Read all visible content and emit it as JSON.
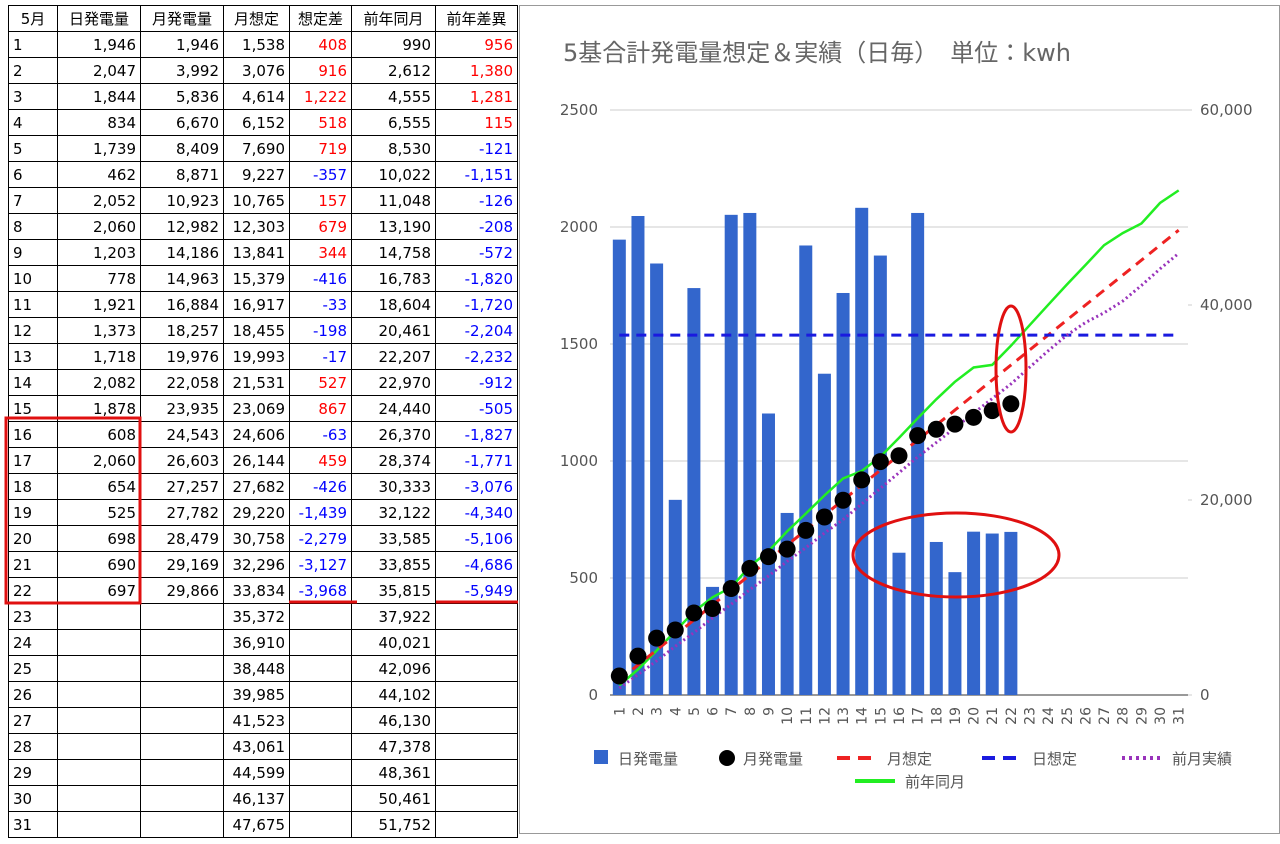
{
  "table": {
    "header": [
      "5月",
      "日発電量",
      "月発電量",
      "月想定",
      "想定差",
      "前年同月",
      "前年差異"
    ],
    "rows": [
      [
        "1",
        "1,946",
        "1,946",
        "1,538",
        "408",
        "990",
        "956"
      ],
      [
        "2",
        "2,047",
        "3,992",
        "3,076",
        "916",
        "2,612",
        "1,380"
      ],
      [
        "3",
        "1,844",
        "5,836",
        "4,614",
        "1,222",
        "4,555",
        "1,281"
      ],
      [
        "4",
        "834",
        "6,670",
        "6,152",
        "518",
        "6,555",
        "115"
      ],
      [
        "5",
        "1,739",
        "8,409",
        "7,690",
        "719",
        "8,530",
        "-121"
      ],
      [
        "6",
        "462",
        "8,871",
        "9,227",
        "-357",
        "10,022",
        "-1,151"
      ],
      [
        "7",
        "2,052",
        "10,923",
        "10,765",
        "157",
        "11,048",
        "-126"
      ],
      [
        "8",
        "2,060",
        "12,982",
        "12,303",
        "679",
        "13,190",
        "-208"
      ],
      [
        "9",
        "1,203",
        "14,186",
        "13,841",
        "344",
        "14,758",
        "-572"
      ],
      [
        "10",
        "778",
        "14,963",
        "15,379",
        "-416",
        "16,783",
        "-1,820"
      ],
      [
        "11",
        "1,921",
        "16,884",
        "16,917",
        "-33",
        "18,604",
        "-1,720"
      ],
      [
        "12",
        "1,373",
        "18,257",
        "18,455",
        "-198",
        "20,461",
        "-2,204"
      ],
      [
        "13",
        "1,718",
        "19,976",
        "19,993",
        "-17",
        "22,207",
        "-2,232"
      ],
      [
        "14",
        "2,082",
        "22,058",
        "21,531",
        "527",
        "22,970",
        "-912"
      ],
      [
        "15",
        "1,878",
        "23,935",
        "23,069",
        "867",
        "24,440",
        "-505"
      ],
      [
        "16",
        "608",
        "24,543",
        "24,606",
        "-63",
        "26,370",
        "-1,827"
      ],
      [
        "17",
        "2,060",
        "26,603",
        "26,144",
        "459",
        "28,374",
        "-1,771"
      ],
      [
        "18",
        "654",
        "27,257",
        "27,682",
        "-426",
        "30,333",
        "-3,076"
      ],
      [
        "19",
        "525",
        "27,782",
        "29,220",
        "-1,439",
        "32,122",
        "-4,340"
      ],
      [
        "20",
        "698",
        "28,479",
        "30,758",
        "-2,279",
        "33,585",
        "-5,106"
      ],
      [
        "21",
        "690",
        "29,169",
        "32,296",
        "-3,127",
        "33,855",
        "-4,686"
      ],
      [
        "22",
        "697",
        "29,866",
        "33,834",
        "-3,968",
        "35,815",
        "-5,949"
      ],
      [
        "23",
        null,
        null,
        "35,372",
        null,
        "37,922",
        null
      ],
      [
        "24",
        null,
        null,
        "36,910",
        null,
        "40,021",
        null
      ],
      [
        "25",
        null,
        null,
        "38,448",
        null,
        "42,096",
        null
      ],
      [
        "26",
        null,
        null,
        "39,985",
        null,
        "44,102",
        null
      ],
      [
        "27",
        null,
        null,
        "41,523",
        null,
        "46,130",
        null
      ],
      [
        "28",
        null,
        null,
        "43,061",
        null,
        "47,378",
        null
      ],
      [
        "29",
        null,
        null,
        "44,599",
        null,
        "48,361",
        null
      ],
      [
        "30",
        null,
        null,
        "46,137",
        null,
        "50,461",
        null
      ],
      [
        "31",
        null,
        null,
        "47,675",
        null,
        "51,752",
        null
      ]
    ]
  },
  "chart_data": {
    "type": "combo",
    "title": "5基合計発電量想定＆実績（日毎）　単位：kwh",
    "categories": [
      "1",
      "2",
      "3",
      "4",
      "5",
      "6",
      "7",
      "8",
      "9",
      "10",
      "11",
      "12",
      "13",
      "14",
      "15",
      "16",
      "17",
      "18",
      "19",
      "20",
      "21",
      "22",
      "23",
      "24",
      "25",
      "26",
      "27",
      "28",
      "29",
      "30",
      "31"
    ],
    "ylim": [
      0,
      2500
    ],
    "yticks": [
      0,
      500,
      1000,
      1500,
      2000,
      2500
    ],
    "y2lim": [
      0,
      60000
    ],
    "y2ticks": [
      0,
      {
        "value": 20000,
        "label": "20,000"
      },
      {
        "value": 40000,
        "label": "40,000"
      },
      {
        "value": 60000,
        "label": "60,000"
      }
    ],
    "grid": true,
    "legend": "bottom",
    "series": [
      {
        "name": "日発電量",
        "type": "bar",
        "color": "#3366cc",
        "values": [
          1946,
          2047,
          1844,
          834,
          1739,
          462,
          2052,
          2060,
          1203,
          778,
          1921,
          1373,
          1718,
          2082,
          1878,
          608,
          2060,
          654,
          525,
          698,
          690,
          697,
          null,
          null,
          null,
          null,
          null,
          null,
          null,
          null,
          null
        ]
      },
      {
        "name": "月発電量",
        "type": "dots",
        "axis": "y2",
        "color": "#000000",
        "values": [
          1946,
          3992,
          5836,
          6670,
          8409,
          8871,
          10923,
          12982,
          14186,
          14963,
          16884,
          18257,
          19976,
          22058,
          23935,
          24543,
          26603,
          27257,
          27782,
          28479,
          29169,
          29866,
          null,
          null,
          null,
          null,
          null,
          null,
          null,
          null,
          null
        ]
      },
      {
        "name": "月想定",
        "type": "dashed",
        "axis": "y2",
        "color": "#ee2222",
        "values": [
          1538,
          3076,
          4614,
          6152,
          7690,
          9227,
          10765,
          12303,
          13841,
          15379,
          16917,
          18455,
          19993,
          21531,
          23069,
          24606,
          26144,
          27682,
          29220,
          30758,
          32296,
          33834,
          35372,
          36910,
          38448,
          39985,
          41523,
          43061,
          44599,
          46137,
          47675
        ]
      },
      {
        "name": "日想定",
        "type": "dashed",
        "color": "#1a1adf",
        "values": [
          1538,
          1538,
          1538,
          1538,
          1538,
          1538,
          1538,
          1538,
          1538,
          1538,
          1538,
          1538,
          1538,
          1538,
          1538,
          1538,
          1538,
          1538,
          1538,
          1538,
          1538,
          1538,
          1538,
          1538,
          1538,
          1538,
          1538,
          1538,
          1538,
          1538,
          1538
        ]
      },
      {
        "name": "前月実績",
        "type": "dotted",
        "axis": "y2",
        "color": "#9933bb",
        "values": [
          700,
          2100,
          3500,
          5000,
          6400,
          7900,
          9300,
          10800,
          12200,
          13700,
          15100,
          16600,
          18000,
          19600,
          21200,
          22800,
          24400,
          25900,
          27400,
          28900,
          30400,
          31900,
          33600,
          35300,
          36900,
          38200,
          39200,
          40400,
          42000,
          43700,
          45300
        ]
      },
      {
        "name": "前年同月",
        "type": "line",
        "axis": "y2",
        "color": "#22ee22",
        "values": [
          990,
          2612,
          4555,
          6555,
          8530,
          10022,
          11048,
          13190,
          14758,
          16783,
          18604,
          20461,
          22207,
          22970,
          24440,
          26370,
          28374,
          30333,
          32122,
          33585,
          33855,
          35815,
          37922,
          40021,
          42096,
          44102,
          46130,
          47378,
          48361,
          50461,
          51752
        ]
      }
    ]
  }
}
